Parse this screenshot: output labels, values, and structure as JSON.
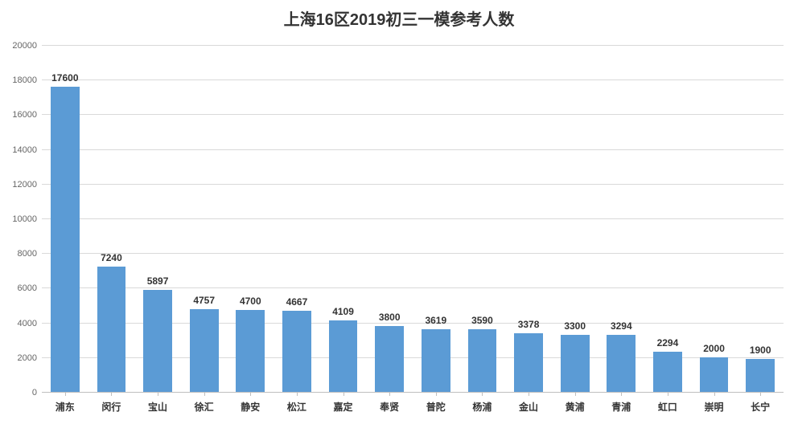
{
  "chart": {
    "type": "bar",
    "title": "上海16区2019初三一模参考人数",
    "title_fontsize": 20,
    "title_color": "#333333",
    "background_color": "#ffffff",
    "bar_color": "#5b9bd5",
    "bar_width_ratio": 0.62,
    "grid_color": "#d9d9d9",
    "axis_color": "#bfbfbf",
    "label_fontsize": 12,
    "tick_fontsize": 11,
    "ylim": [
      0,
      20000
    ],
    "ytick_step": 2000,
    "yticks": [
      0,
      2000,
      4000,
      6000,
      8000,
      10000,
      12000,
      14000,
      16000,
      18000,
      20000
    ],
    "categories": [
      "浦东",
      "闵行",
      "宝山",
      "徐汇",
      "静安",
      "松江",
      "嘉定",
      "奉贤",
      "普陀",
      "杨浦",
      "金山",
      "黄浦",
      "青浦",
      "虹口",
      "崇明",
      "长宁"
    ],
    "values": [
      17600,
      7240,
      5897,
      4757,
      4700,
      4667,
      4109,
      3800,
      3619,
      3590,
      3378,
      3300,
      3294,
      2294,
      2000,
      1900
    ]
  }
}
